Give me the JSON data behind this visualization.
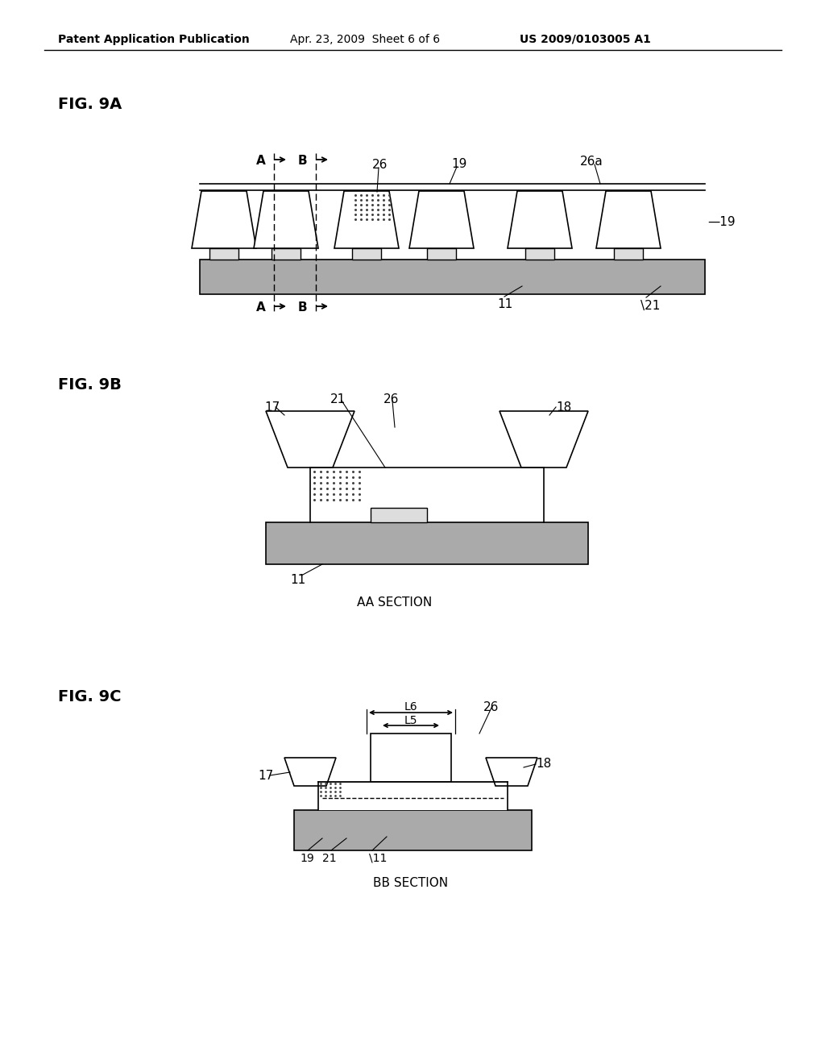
{
  "bg_color": "#ffffff",
  "header_left": "Patent Application Publication",
  "header_center": "Apr. 23, 2009  Sheet 6 of 6",
  "header_right": "US 2009/0103005 A1",
  "fig9a_label": "FIG. 9A",
  "fig9b_label": "FIG. 9B",
  "fig9c_label": "FIG. 9C",
  "section_aa": "AA SECTION",
  "section_bb": "BB SECTION",
  "gray_substrate": "#aaaaaa",
  "gray_light": "#dddddd",
  "black": "#000000",
  "white": "#ffffff"
}
